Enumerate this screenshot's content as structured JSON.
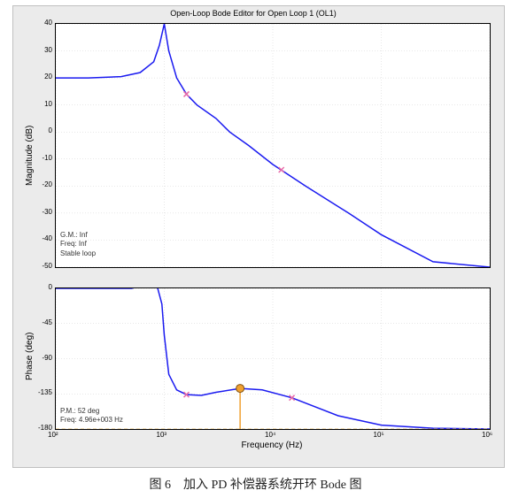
{
  "figure": {
    "caption": "图 6　加入 PD 补偿器系统开环 Bode 图",
    "panel_bg": "#ebebeb",
    "plot_bg": "#ffffff",
    "title": "Open-Loop Bode Editor for Open Loop 1 (OL1)",
    "grid_color": "#d0d0d0",
    "axis_color": "#000000",
    "line_color": "#1a1af0",
    "line_width": 1.5,
    "marker_pink": "#e86aa8",
    "marker_orange": "#f0a030",
    "dash_orange": "#e8c070",
    "xlabel": "Frequency (Hz)",
    "xlim": [
      100,
      1000000
    ],
    "xticks": [
      100,
      1000,
      10000,
      100000,
      1000000
    ],
    "xtick_labels": [
      "10²",
      "10³",
      "10⁴",
      "10⁵",
      "10⁶"
    ],
    "magnitude": {
      "ylabel": "Magnitude (dB)",
      "ylim": [
        -50,
        40
      ],
      "yticks": [
        -50,
        -40,
        -30,
        -20,
        -10,
        0,
        10,
        20,
        30,
        40
      ],
      "annot": [
        "G.M.: Inf",
        "Freq: Inf",
        "Stable loop"
      ],
      "data": [
        [
          100,
          20
        ],
        [
          200,
          20
        ],
        [
          400,
          20.5
        ],
        [
          600,
          22
        ],
        [
          800,
          26
        ],
        [
          900,
          32
        ],
        [
          1000,
          40
        ],
        [
          1100,
          30
        ],
        [
          1300,
          20
        ],
        [
          1600,
          14
        ],
        [
          2000,
          10
        ],
        [
          3000,
          5
        ],
        [
          4000,
          0
        ],
        [
          6000,
          -5
        ],
        [
          10000,
          -12
        ],
        [
          20000,
          -20
        ],
        [
          50000,
          -30
        ],
        [
          100000,
          -38
        ],
        [
          300000,
          -48
        ],
        [
          1000000,
          -50
        ]
      ],
      "pink_markers": [
        [
          1600,
          14
        ],
        [
          12000,
          -14
        ]
      ]
    },
    "phase": {
      "ylabel": "Phase (deg)",
      "ylim": [
        -180,
        0
      ],
      "yticks": [
        -180,
        -135,
        -90,
        -45,
        0
      ],
      "annot": [
        "P.M.: 52 deg",
        "Freq: 4.96e+003 Hz"
      ],
      "data": [
        [
          100,
          0
        ],
        [
          500,
          0
        ],
        [
          700,
          5
        ],
        [
          850,
          5
        ],
        [
          950,
          -20
        ],
        [
          1000,
          -60
        ],
        [
          1100,
          -110
        ],
        [
          1300,
          -130
        ],
        [
          1600,
          -136
        ],
        [
          2200,
          -137
        ],
        [
          3000,
          -133
        ],
        [
          5000,
          -128
        ],
        [
          8000,
          -130
        ],
        [
          15000,
          -140
        ],
        [
          40000,
          -163
        ],
        [
          100000,
          -175
        ],
        [
          300000,
          -179
        ],
        [
          1000000,
          -180
        ]
      ],
      "pink_markers": [
        [
          1600,
          -136
        ],
        [
          15000,
          -140
        ]
      ],
      "crossover": [
        5000,
        -128
      ],
      "dash_y": -180
    }
  }
}
